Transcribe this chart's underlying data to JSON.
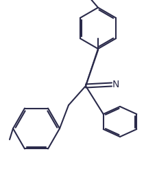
{
  "bg_color": "#ffffff",
  "line_color": "#2a2a4a",
  "line_width": 1.5,
  "fig_width": 2.3,
  "fig_height": 2.75,
  "dpi": 100,
  "N_label_fontsize": 10
}
